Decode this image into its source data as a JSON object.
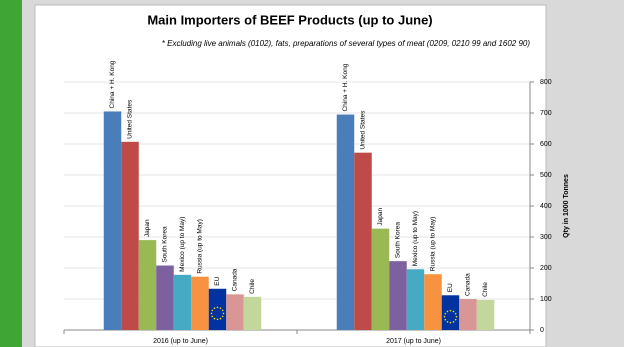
{
  "chart_data": {
    "type": "bar",
    "title": "Main Importers of BEEF Products (up to June)",
    "subtitle": "* Excluding live animals (0102), fats, preparations of several types of meat (0209, 0210 99 and 1602 90)",
    "y_axis_label": "Qty in 1000 Tonnes",
    "categories": [
      "2016 (up to June)",
      "2017 (up to June)"
    ],
    "series": [
      {
        "name": "China + H. Kong",
        "color": "#4a7ebb",
        "values": [
          705,
          695
        ]
      },
      {
        "name": "United States",
        "color": "#be4b48",
        "values": [
          607,
          572
        ]
      },
      {
        "name": "Japan",
        "color": "#98b954",
        "values": [
          290,
          327
        ]
      },
      {
        "name": "South Korea",
        "color": "#7d60a0",
        "values": [
          208,
          222
        ]
      },
      {
        "name": "Mexico (up to May)",
        "color": "#46aac5",
        "values": [
          178,
          196
        ]
      },
      {
        "name": "Russia (up to May)",
        "color": "#f69240",
        "values": [
          172,
          180
        ]
      },
      {
        "name": "EU",
        "color": "#0033a0",
        "values": [
          133,
          112
        ]
      },
      {
        "name": "Canada",
        "color": "#d99694",
        "values": [
          115,
          100
        ]
      },
      {
        "name": "Chile",
        "color": "#c3d69b",
        "values": [
          107,
          97
        ]
      }
    ],
    "ylim": [
      0,
      800
    ],
    "yticks": [
      0,
      100,
      200,
      300,
      400,
      500,
      600,
      700,
      800
    ],
    "grid": true
  }
}
